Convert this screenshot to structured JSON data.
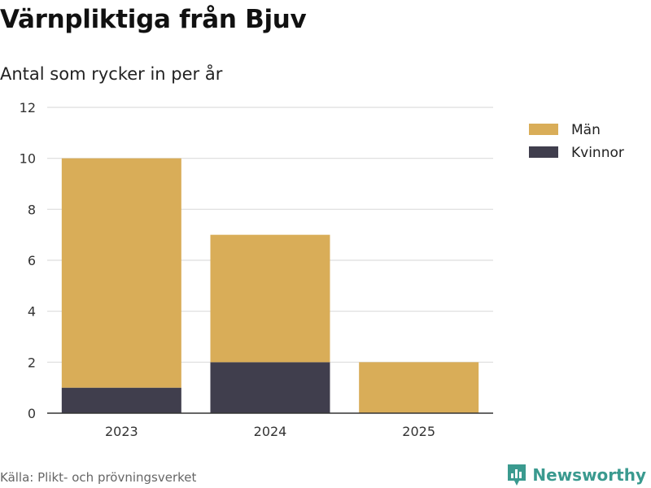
{
  "title": "Värnpliktiga från Bjuv",
  "subtitle": "Antal som rycker in per år",
  "source": "Källa: Plikt- och prövningsverket",
  "brand": "Newsworthy",
  "colors": {
    "man": "#d9ad58",
    "kvinnor": "#403e4d",
    "grid": "#dddddd",
    "axis": "#333333",
    "brand": "#3a9a8f"
  },
  "chart_data": {
    "type": "bar",
    "stacked": true,
    "categories": [
      "2023",
      "2024",
      "2025"
    ],
    "series": [
      {
        "name": "Kvinnor",
        "values": [
          1,
          2,
          0
        ]
      },
      {
        "name": "Män",
        "values": [
          9,
          5,
          2
        ]
      }
    ],
    "legend": [
      "Män",
      "Kvinnor"
    ],
    "legend_placement": "top-right",
    "ylim": [
      0,
      12
    ],
    "yticks": [
      0,
      2,
      4,
      6,
      8,
      10,
      12
    ],
    "grid": true,
    "xlabel": "",
    "ylabel": ""
  }
}
